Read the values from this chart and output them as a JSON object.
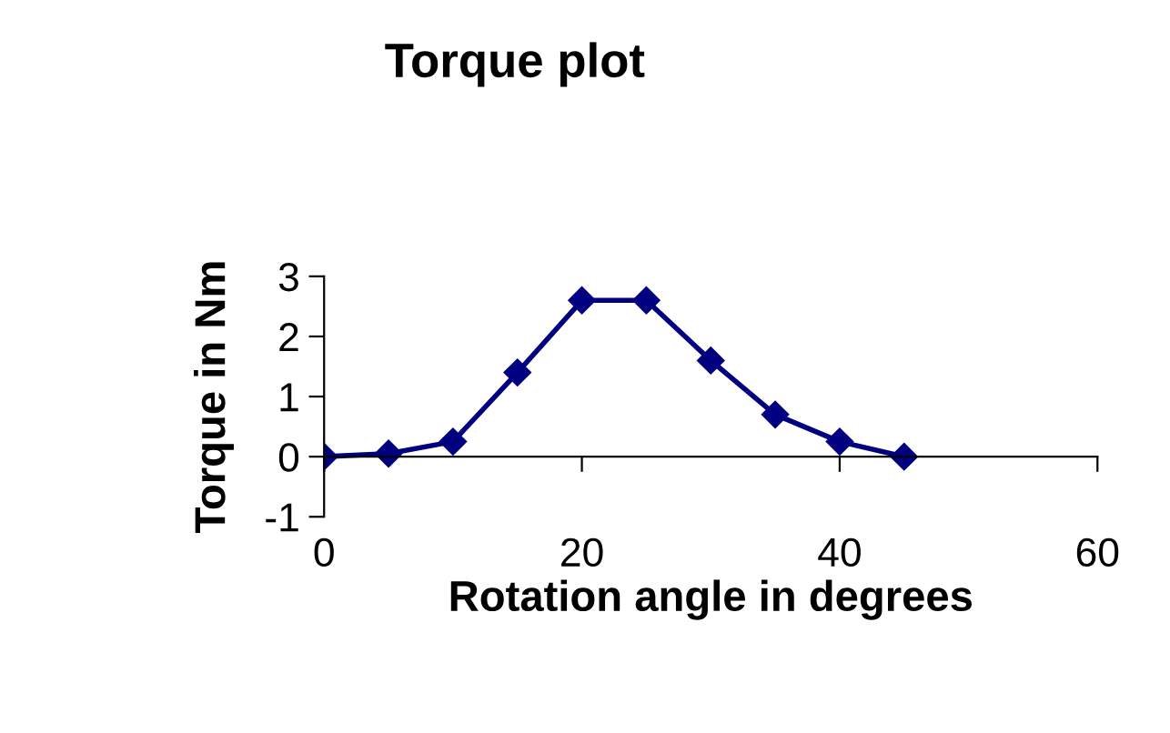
{
  "chart_data": {
    "type": "line",
    "title": "Torque plot",
    "xlabel": "Rotation angle in degrees",
    "ylabel": "Torque in Nm",
    "x": [
      0,
      5,
      10,
      15,
      20,
      25,
      30,
      35,
      40,
      45
    ],
    "series": [
      {
        "color": "#000080",
        "values": [
          0,
          0.05,
          0.25,
          1.4,
          2.6,
          2.6,
          1.6,
          0.7,
          0.25,
          0
        ]
      }
    ],
    "xlim": [
      0,
      60
    ],
    "xticks": [
      0,
      20,
      40,
      60
    ],
    "ylim": [
      -1,
      3
    ],
    "yticks": [
      -1,
      0,
      1,
      2,
      3
    ],
    "marker": "diamond",
    "line_style": "solid",
    "grid": false,
    "legend": false
  }
}
